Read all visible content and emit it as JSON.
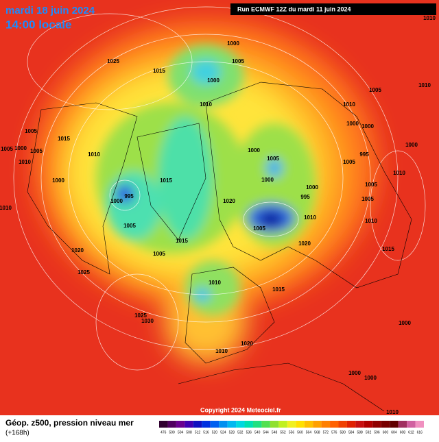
{
  "header": {
    "date": "mardi 18 juin 2024",
    "time": "14:00 locale",
    "run": "Run ECMWF 12Z du mardi 11 juin 2024"
  },
  "footer": {
    "title": "Géop. z500, pression niveau mer",
    "lead": "(+168h)",
    "copyright": "Copyright 2024 Meteociel.fr"
  },
  "colorbar": {
    "labels": [
      476,
      500,
      504,
      508,
      512,
      516,
      520,
      524,
      528,
      532,
      536,
      540,
      544,
      548,
      552,
      556,
      560,
      564,
      568,
      572,
      576,
      580,
      584,
      588,
      592,
      596,
      600,
      604,
      608,
      612,
      616
    ]
  },
  "isobar_labels": [
    "1010",
    "1000",
    "1005",
    "1025",
    "1015",
    "1000",
    "1005",
    "1010",
    "1010",
    "1010",
    "1000",
    "1000",
    "1005",
    "1015",
    "1005",
    "1000",
    "1005",
    "1000",
    "1000",
    "1005",
    "1010",
    "995",
    "1010",
    "1005",
    "1010",
    "1000",
    "1015",
    "1000",
    "1000",
    "1005",
    "995",
    "995",
    "1000",
    "1020",
    "1005",
    "1010",
    "1010",
    "1010",
    "1005",
    "1005",
    "1015",
    "1020",
    "1020",
    "1005",
    "1015",
    "1025",
    "1015",
    "1010",
    "1000",
    "1025",
    "1030",
    "1020",
    "1010",
    "1000",
    "1000",
    "1010"
  ]
}
